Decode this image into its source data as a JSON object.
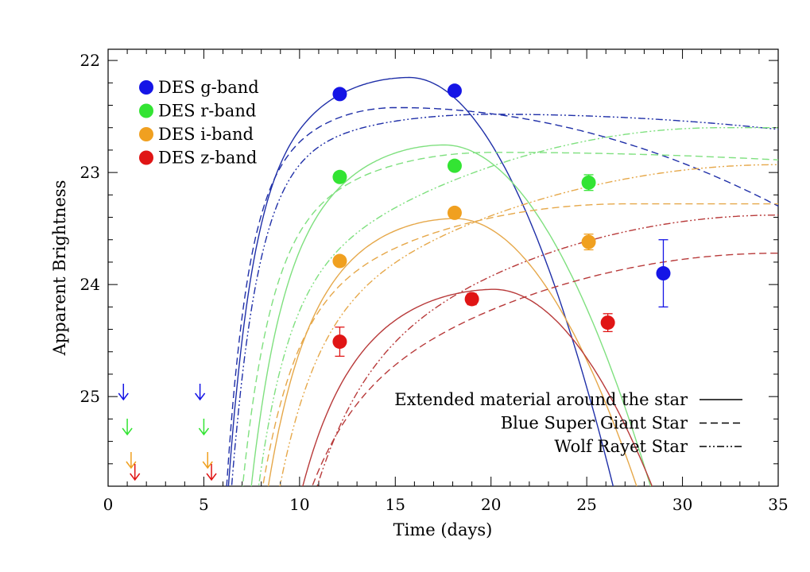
{
  "chart_data": {
    "type": "scatter",
    "xlabel": "Time (days)",
    "ylabel": "Apparent Brightness",
    "xlim": [
      0,
      35
    ],
    "ylim": [
      25.8,
      21.9
    ],
    "y_inverted": true,
    "grid": false,
    "legend_placement": "top-left",
    "x_ticks": [
      {
        "v": 0,
        "label": "0"
      },
      {
        "v": 5,
        "label": "5"
      },
      {
        "v": 10,
        "label": "10"
      },
      {
        "v": 15,
        "label": "15"
      },
      {
        "v": 20,
        "label": "20"
      },
      {
        "v": 25,
        "label": "25"
      },
      {
        "v": 30,
        "label": "30"
      },
      {
        "v": 35,
        "label": "35"
      }
    ],
    "y_ticks": [
      {
        "v": 22,
        "label": "22"
      },
      {
        "v": 23,
        "label": "23"
      },
      {
        "v": 24,
        "label": "24"
      },
      {
        "v": 25,
        "label": "25"
      }
    ],
    "series": [
      {
        "name": "DES g-band",
        "color": "#1515e6",
        "points": [
          {
            "x": 12.1,
            "y": 22.3,
            "err": 0.02
          },
          {
            "x": 18.1,
            "y": 22.27,
            "err": 0.02
          },
          {
            "x": 29.0,
            "y": 23.9,
            "err": 0.3
          }
        ],
        "upper_limits_x": [
          0.8,
          4.8
        ]
      },
      {
        "name": "DES r-band",
        "color": "#33e433",
        "points": [
          {
            "x": 12.1,
            "y": 23.04,
            "err": 0.02
          },
          {
            "x": 18.1,
            "y": 22.94,
            "err": 0.02
          },
          {
            "x": 25.1,
            "y": 23.09,
            "err": 0.07
          }
        ],
        "upper_limits_x": [
          1.0,
          5.0
        ]
      },
      {
        "name": "DES i-band",
        "color": "#f0a020",
        "points": [
          {
            "x": 12.1,
            "y": 23.79,
            "err": 0.03
          },
          {
            "x": 18.1,
            "y": 23.36,
            "err": 0.02
          },
          {
            "x": 25.1,
            "y": 23.62,
            "err": 0.07
          }
        ],
        "upper_limits_x": [
          1.2,
          5.2
        ]
      },
      {
        "name": "DES z-band",
        "color": "#e01515",
        "points": [
          {
            "x": 12.1,
            "y": 24.51,
            "err": 0.13
          },
          {
            "x": 19.0,
            "y": 24.13,
            "err": 0.05
          },
          {
            "x": 26.1,
            "y": 24.34,
            "err": 0.08
          }
        ],
        "upper_limits_x": [
          1.4,
          5.4
        ]
      }
    ],
    "models": [
      {
        "name": "Extended material around the star",
        "style": "solid",
        "curves": [
          {
            "band": "g",
            "color": "#1f2fa8",
            "t0": 6.0,
            "tp": 15.7,
            "mp": 22.15,
            "tau": 1.3,
            "kr": 0.0095,
            "ke": 0.032
          },
          {
            "band": "r",
            "color": "#7fe07f",
            "t0": 6.7,
            "tp": 17.5,
            "mp": 22.75,
            "tau": 1.6,
            "kr": 0.009,
            "ke": 0.026
          },
          {
            "band": "i",
            "color": "#e6a84a",
            "t0": 7.0,
            "tp": 18.0,
            "mp": 23.4,
            "tau": 1.9,
            "kr": 0.0075,
            "ke": 0.026
          },
          {
            "band": "z",
            "color": "#b83a3a",
            "t0": 7.7,
            "tp": 20.0,
            "mp": 24.03,
            "tau": 2.2,
            "kr": 0.0065,
            "ke": 0.025
          }
        ]
      },
      {
        "name": "Blue Super Giant Star",
        "style": "dashed",
        "curves": [
          {
            "band": "g",
            "color": "#1f2fa8",
            "t0": 5.9,
            "tp": 15.0,
            "mp": 22.42,
            "tau": 1.1,
            "kr": 0.009,
            "ke": 0.0022
          },
          {
            "band": "r",
            "color": "#7fe07f",
            "t0": 6.4,
            "tp": 20.0,
            "mp": 22.82,
            "tau": 1.5,
            "kr": 0.004,
            "ke": 0.0003
          },
          {
            "band": "i",
            "color": "#e6a84a",
            "t0": 6.7,
            "tp": 27.0,
            "mp": 23.28,
            "tau": 1.8,
            "kr": 0.0025,
            "ke": 0.0
          },
          {
            "band": "z",
            "color": "#b83a3a",
            "t0": 7.2,
            "tp": 35.0,
            "mp": 23.72,
            "tau": 2.3,
            "kr": 0.0022,
            "ke": 0.0
          }
        ]
      },
      {
        "name": "Wolf Rayet Star",
        "style": "dashdotdot",
        "curves": [
          {
            "band": "g",
            "color": "#1f2fa8",
            "t0": 6.2,
            "tp": 20.0,
            "mp": 22.48,
            "tau": 1.4,
            "kr": 0.0022,
            "ke": 0.0006
          },
          {
            "band": "r",
            "color": "#7fe07f",
            "t0": 6.8,
            "tp": 32.0,
            "mp": 22.6,
            "tau": 1.6,
            "kr": 0.0024,
            "ke": 0.0
          },
          {
            "band": "i",
            "color": "#e6a84a",
            "t0": 7.3,
            "tp": 35.0,
            "mp": 22.93,
            "tau": 2.0,
            "kr": 0.002,
            "ke": 0.0
          },
          {
            "band": "z",
            "color": "#b83a3a",
            "t0": 8.0,
            "tp": 35.0,
            "mp": 23.38,
            "tau": 2.5,
            "kr": 0.0023,
            "ke": 0.0
          }
        ]
      }
    ]
  }
}
